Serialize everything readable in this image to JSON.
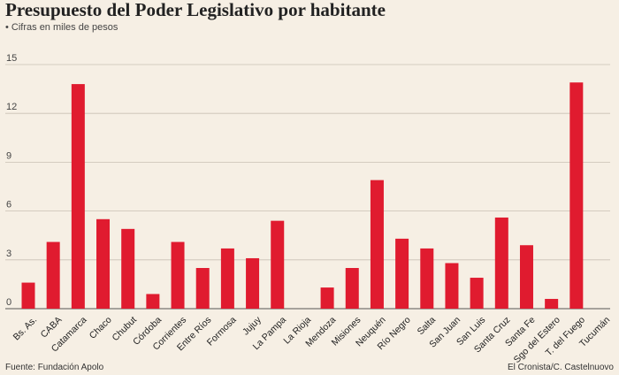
{
  "title": "Presupuesto del Poder Legislativo por habitante",
  "subtitle": "• Cifras en miles de pesos",
  "source": "Fuente: Fundación Apolo",
  "credit": "El Cronista/C. Castelnuovo",
  "colors": {
    "bar": "#e01b2f",
    "background": "#f6efe4",
    "grid": "#c9c0b3",
    "text": "#222222"
  },
  "chart_data": {
    "type": "bar",
    "title": "Presupuesto del Poder Legislativo por habitante",
    "subtitle": "Cifras en miles de pesos",
    "xlabel": "",
    "ylabel": "",
    "ylim": [
      0,
      15
    ],
    "yticks": [
      "0",
      "3",
      "6",
      "9",
      "12",
      "15"
    ],
    "grid": true,
    "categories": [
      "Bs. As.",
      "CABA",
      "Catamarca",
      "Chaco",
      "Chubut",
      "Córdoba",
      "Corrientes",
      "Entre Ríos",
      "Formosa",
      "Jujuy",
      "La Pampa",
      "La Rioja",
      "Mendoza",
      "Misiones",
      "Neuquén",
      "Río Negro",
      "Salta",
      "San Juan",
      "San Luis",
      "Santa Cruz",
      "Santa Fe",
      "Sgo del Estero",
      "T. del Fuego",
      "Tucumán"
    ],
    "values": [
      1.6,
      4.1,
      13.8,
      5.5,
      4.9,
      0.9,
      4.1,
      2.5,
      3.7,
      3.1,
      5.4,
      0,
      1.3,
      2.5,
      7.9,
      4.3,
      3.7,
      2.8,
      1.9,
      5.6,
      3.9,
      0.6,
      13.9,
      0
    ]
  }
}
